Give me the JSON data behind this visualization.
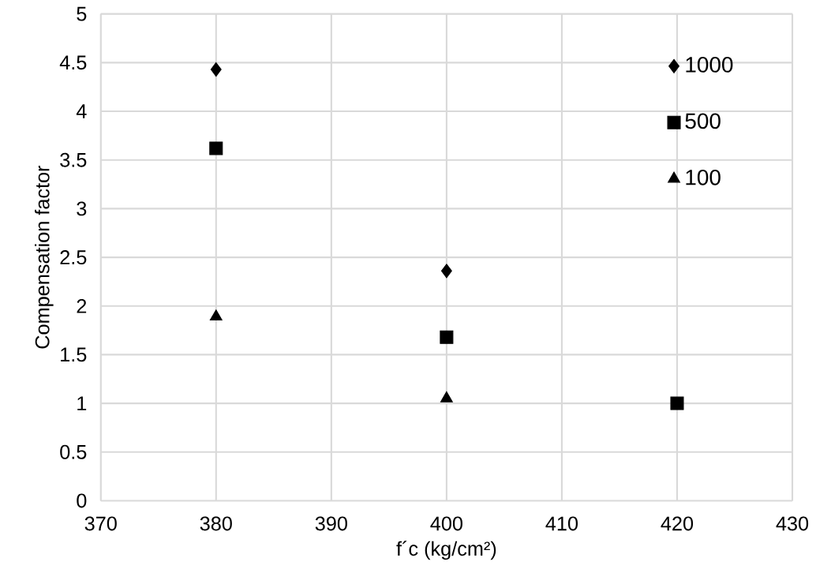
{
  "chart_data": {
    "type": "scatter",
    "xlabel": "f´c (kg/cm²)",
    "ylabel": "Compensation factor",
    "xlim": [
      370,
      430
    ],
    "xticks": [
      370,
      380,
      390,
      400,
      410,
      420,
      430
    ],
    "ylim": [
      0,
      5
    ],
    "yticks": [
      0,
      0.5,
      1,
      1.5,
      2,
      2.5,
      3,
      3.5,
      4,
      4.5,
      5
    ],
    "grid": true,
    "legend": "top right",
    "series": [
      {
        "name": "1000",
        "color": "#000000",
        "marker": "diamond",
        "x": [
          380,
          400
        ],
        "values": [
          4.43,
          2.36
        ]
      },
      {
        "name": "500",
        "color": "#000000",
        "marker": "square",
        "x": [
          380,
          400,
          420
        ],
        "values": [
          3.62,
          1.68,
          1.0
        ]
      },
      {
        "name": "100",
        "color": "#000000",
        "marker": "triangle",
        "x": [
          380,
          400
        ],
        "values": [
          1.89,
          1.05
        ]
      }
    ]
  }
}
